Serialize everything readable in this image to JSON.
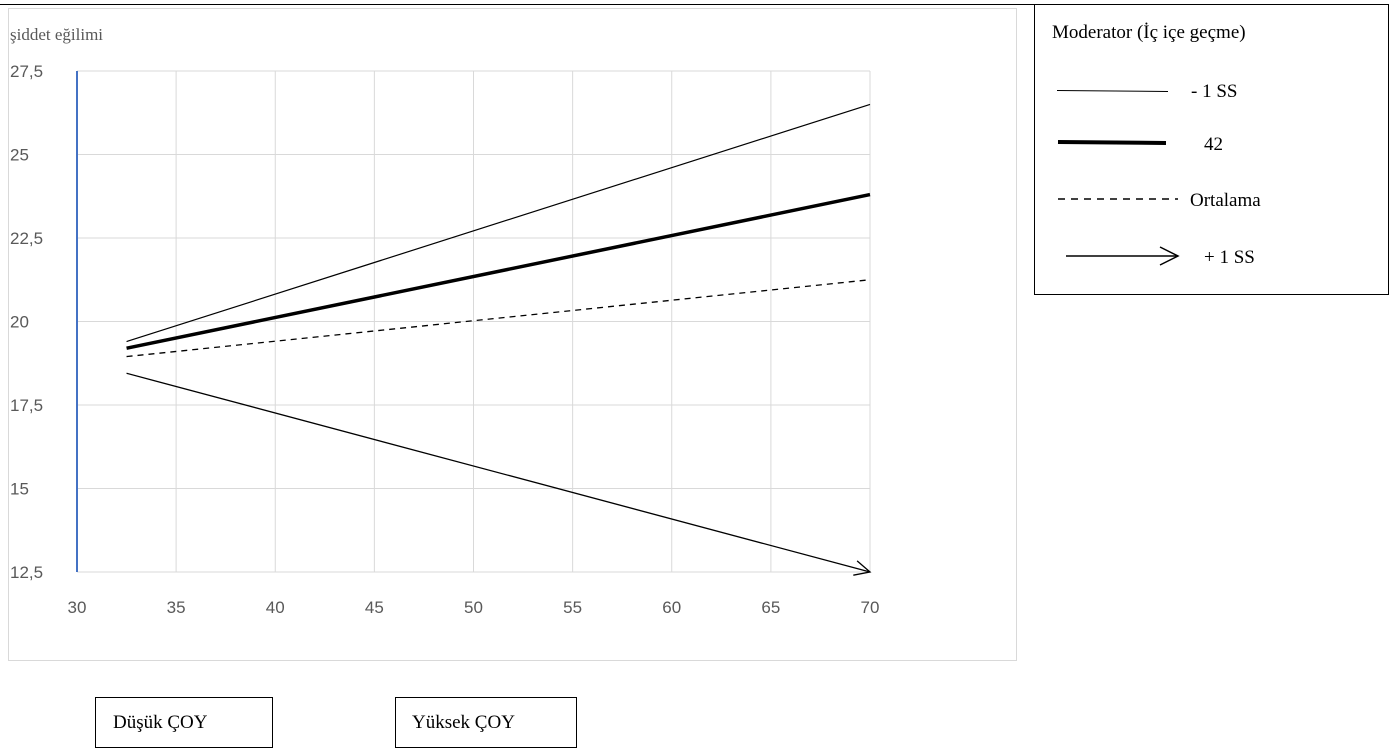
{
  "chart_data": {
    "type": "line",
    "ylabel": "şiddet eğilimi",
    "xlim": [
      30,
      70
    ],
    "ylim": [
      12.5,
      27.5
    ],
    "x_ticks": [
      "30",
      "35",
      "40",
      "45",
      "50",
      "55",
      "60",
      "65",
      "70"
    ],
    "y_ticks": [
      "12,5",
      "15",
      "17,5",
      "20",
      "22,5",
      "25",
      "27,5"
    ],
    "grid": true,
    "legend_position": "right",
    "legend_title": "Moderator (İç içe geçme)",
    "series": [
      {
        "name": "- 1 SS",
        "style": "thin",
        "x": [
          32.5,
          70
        ],
        "y": [
          19.4,
          26.5
        ]
      },
      {
        "name": "42",
        "style": "thick",
        "x": [
          32.5,
          70
        ],
        "y": [
          19.2,
          23.8
        ]
      },
      {
        "name": "Ortalama",
        "style": "dashed",
        "x": [
          32.5,
          70
        ],
        "y": [
          18.95,
          21.25
        ]
      },
      {
        "name": "+ 1 SS",
        "style": "arrow",
        "x": [
          32.5,
          70
        ],
        "y": [
          18.45,
          12.5
        ]
      }
    ]
  },
  "boxes": {
    "low_label": "Düşük ÇOY",
    "high_label": "Yüksek ÇOY"
  },
  "colors": {
    "grid": "#d9d9d9",
    "y_axis": "#4472c4",
    "text": "#595959",
    "line": "#000000"
  }
}
